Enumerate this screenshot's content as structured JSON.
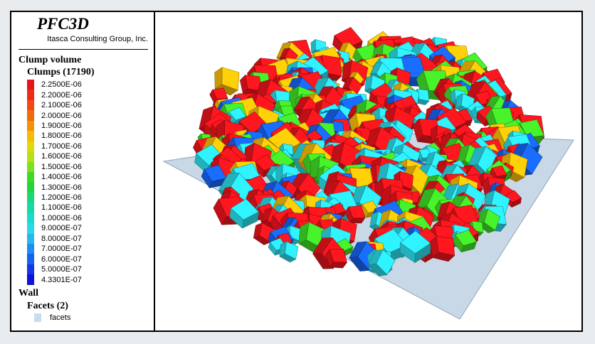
{
  "brand": {
    "title": "PFC3D",
    "subtitle": "Itasca Consulting Group, Inc."
  },
  "legend": {
    "clump_heading": "Clump volume",
    "clumps_heading": "Clumps (17190)",
    "scale": [
      {
        "label": "2.2500E-06",
        "color": "#e8141b"
      },
      {
        "label": "2.2000E-06",
        "color": "#ee2b17"
      },
      {
        "label": "2.1000E-06",
        "color": "#f04a12"
      },
      {
        "label": "2.0000E-06",
        "color": "#f26a0e"
      },
      {
        "label": "1.9000E-06",
        "color": "#f5920a"
      },
      {
        "label": "1.8000E-06",
        "color": "#f5bb07"
      },
      {
        "label": "1.7000E-06",
        "color": "#e2d90b"
      },
      {
        "label": "1.6000E-06",
        "color": "#b6e114"
      },
      {
        "label": "1.5000E-06",
        "color": "#7fe01c"
      },
      {
        "label": "1.4000E-06",
        "color": "#3fd926"
      },
      {
        "label": "1.3000E-06",
        "color": "#20d63c"
      },
      {
        "label": "1.2000E-06",
        "color": "#18d87a"
      },
      {
        "label": "1.1000E-06",
        "color": "#15d9a8"
      },
      {
        "label": "1.0000E-06",
        "color": "#1ad9cf"
      },
      {
        "label": "9.0000E-07",
        "color": "#2ad9e6"
      },
      {
        "label": "8.0000E-07",
        "color": "#26b8ee"
      },
      {
        "label": "7.0000E-07",
        "color": "#1e8ff0"
      },
      {
        "label": "6.0000E-07",
        "color": "#1762ef"
      },
      {
        "label": "5.0000E-07",
        "color": "#1336e6"
      },
      {
        "label": "4.3301E-07",
        "color": "#0f10d8"
      }
    ],
    "wall_heading": "Wall",
    "facets_heading": "Facets (2)",
    "facet_item": "facets",
    "facet_color": "#c9ddf0"
  }
}
